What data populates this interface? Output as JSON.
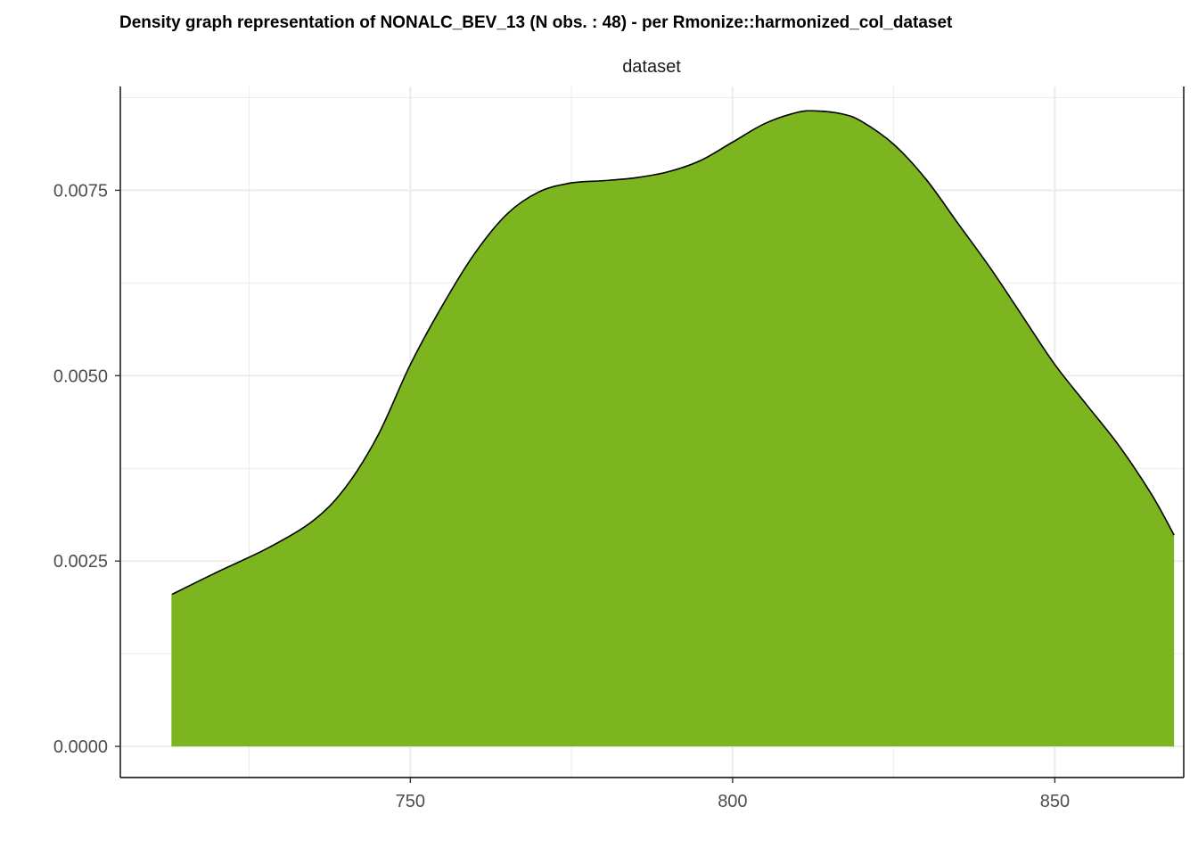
{
  "chart_data": {
    "type": "area",
    "title": "Density graph representation of NONALC_BEV_13 (N obs. : 48) - per Rmonize::harmonized_col_dataset",
    "facet_label": "dataset",
    "xlabel": "",
    "ylabel": "",
    "xlim": [
      705,
      870
    ],
    "ylim": [
      -0.00042,
      0.0089
    ],
    "x_ticks": [
      750,
      800,
      850
    ],
    "x_tick_labels": [
      "750",
      "800",
      "850"
    ],
    "x_minor_ticks": [
      725,
      775,
      825
    ],
    "y_ticks": [
      0.0,
      0.0025,
      0.005,
      0.0075
    ],
    "y_tick_labels": [
      "0.0000",
      "0.0025",
      "0.0050",
      "0.0075"
    ],
    "y_minor_ticks": [
      0.00125,
      0.00375,
      0.00625,
      0.00875
    ],
    "grid": true,
    "fill_color": "#7CB51F",
    "line_color": "#000000",
    "series": [
      {
        "x": [
          713,
          720,
          728,
          735,
          740,
          745,
          750,
          755,
          760,
          765,
          770,
          775,
          780,
          785,
          790,
          795,
          800,
          805,
          810,
          813,
          817,
          820,
          825,
          830,
          835,
          840,
          845,
          850,
          855,
          860,
          865,
          868.5
        ],
        "y": [
          0.00205,
          0.00235,
          0.00268,
          0.00305,
          0.0035,
          0.0042,
          0.00515,
          0.00595,
          0.00665,
          0.00718,
          0.00748,
          0.0076,
          0.00763,
          0.00767,
          0.00775,
          0.0079,
          0.00815,
          0.0084,
          0.00855,
          0.00857,
          0.00853,
          0.00843,
          0.00812,
          0.00765,
          0.00705,
          0.00645,
          0.0058,
          0.00515,
          0.0046,
          0.00405,
          0.0034,
          0.00285
        ]
      }
    ]
  }
}
